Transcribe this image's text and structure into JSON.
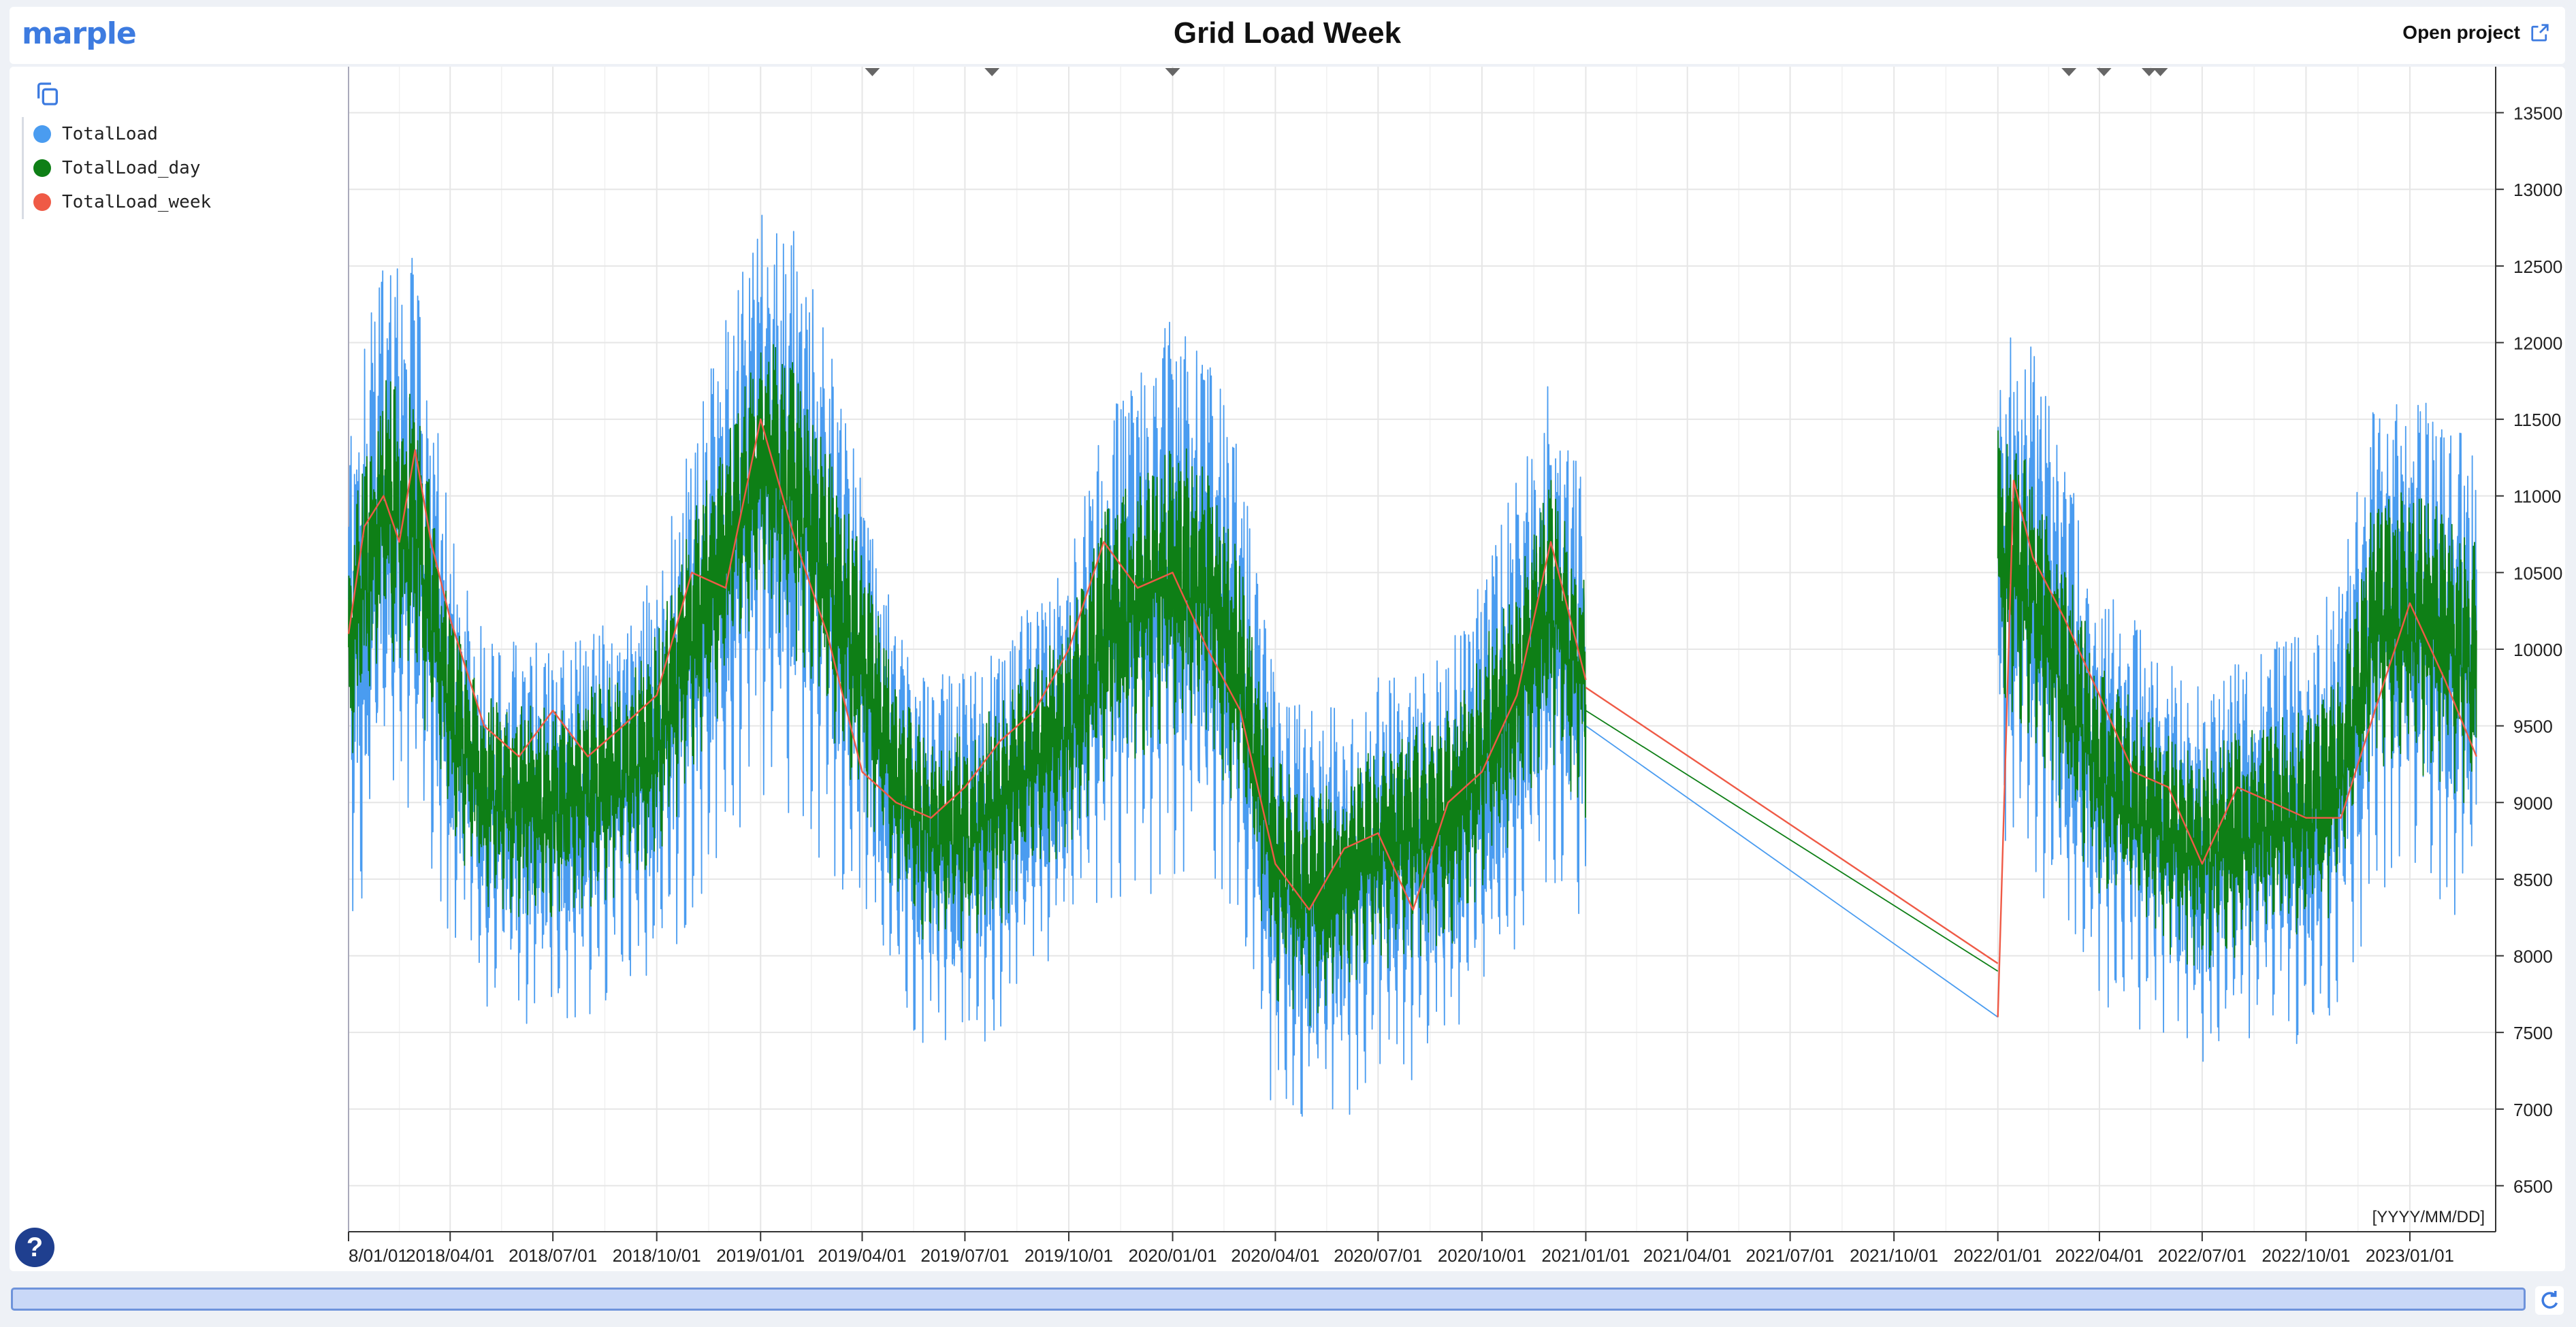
{
  "app": {
    "logo_text": "marple",
    "title": "Grid Load Week",
    "open_project_label": "Open project"
  },
  "legend": [
    {
      "label": "TotalLoad",
      "color": "#4a9cf0"
    },
    {
      "label": "TotalLoad_day",
      "color": "#0e7f16"
    },
    {
      "label": "TotalLoad_week",
      "color": "#ef5a46"
    }
  ],
  "help_label": "?",
  "chart_data": {
    "type": "line",
    "title": "Grid Load Week",
    "x_axis_format": "[YYYY/MM/DD]",
    "xlim": [
      "2018-01-01",
      "2023-03-18"
    ],
    "ylim": [
      6200,
      13800
    ],
    "y_ticks": [
      6500,
      7000,
      7500,
      8000,
      8500,
      9000,
      9500,
      10000,
      10500,
      11000,
      11500,
      12000,
      12500,
      13000,
      13500
    ],
    "x_tick_labels": [
      "8/01/01",
      "2018/04/01",
      "2018/07/01",
      "2018/10/01",
      "2019/01/01",
      "2019/04/01",
      "2019/07/01",
      "2019/10/01",
      "2020/01/01",
      "2020/04/01",
      "2020/07/01",
      "2020/10/01",
      "2021/01/01",
      "2021/04/01",
      "2021/07/01",
      "2021/10/01",
      "2022/01/01",
      "2022/04/01",
      "2022/07/01",
      "2022/10/01",
      "2023/01/01"
    ],
    "x_tick_dates": [
      "2018-01-01",
      "2018-04-01",
      "2018-07-01",
      "2018-10-01",
      "2019-01-01",
      "2019-04-01",
      "2019-07-01",
      "2019-10-01",
      "2020-01-01",
      "2020-04-01",
      "2020-07-01",
      "2020-10-01",
      "2021-01-01",
      "2021-04-01",
      "2021-07-01",
      "2021-10-01",
      "2022-01-01",
      "2022-04-01",
      "2022-07-01",
      "2022-10-01",
      "2023-01-01"
    ],
    "grid": true,
    "y_axis_side": "right",
    "event_markers": [
      "2019-04-10",
      "2019-07-25",
      "2020-01-01",
      "2022-03-05",
      "2022-04-05",
      "2022-05-15",
      "2022-05-25"
    ],
    "series": [
      {
        "name": "TotalLoad",
        "color": "#4a9cf0",
        "segments": [
          {
            "x": [
              "2018-01-01",
              "2018-02-01",
              "2018-03-01",
              "2018-04-01",
              "2018-05-01",
              "2018-06-01",
              "2018-07-01",
              "2018-08-01",
              "2018-09-01",
              "2018-10-01",
              "2018-11-01",
              "2018-12-01",
              "2019-01-01",
              "2019-02-01",
              "2019-03-01",
              "2019-04-01",
              "2019-05-01",
              "2019-06-01",
              "2019-07-01",
              "2019-08-01",
              "2019-09-01",
              "2019-10-01",
              "2019-11-01",
              "2019-12-01",
              "2020-01-01",
              "2020-02-01",
              "2020-03-01",
              "2020-04-01",
              "2020-05-01",
              "2020-06-01",
              "2020-07-01",
              "2020-08-01",
              "2020-09-01",
              "2020-10-01",
              "2020-11-01",
              "2020-12-01",
              "2021-01-01"
            ],
            "y": [
              9900,
              10900,
              10800,
              9600,
              9000,
              8900,
              8950,
              9000,
              9100,
              9300,
              10000,
              10600,
              11200,
              11000,
              10500,
              9800,
              9000,
              8700,
              8700,
              8900,
              9200,
              9400,
              10100,
              10300,
              10500,
              10400,
              9800,
              8500,
              8300,
              8400,
              8600,
              8700,
              8800,
              9200,
              9700,
              10300,
              9800
            ],
            "noise": [
              1800,
              2000,
              2000,
              1400,
              1300,
              1300,
              1300,
              1300,
              1300,
              1400,
              1600,
              1800,
              2000,
              2000,
              1800,
              1500,
              1300,
              1300,
              1300,
              1300,
              1300,
              1400,
              1600,
              1800,
              1900,
              1800,
              1700,
              1500,
              1500,
              1400,
              1400,
              1400,
              1400,
              1500,
              1600,
              1700,
              1500
            ]
          },
          {
            "x": [
              "2021-01-01",
              "2022-01-01"
            ],
            "y": [
              9500,
              7600
            ],
            "noise": [
              0,
              0
            ]
          },
          {
            "x": [
              "2022-01-01",
              "2022-02-01",
              "2022-03-01",
              "2022-04-01",
              "2022-05-01",
              "2022-06-01",
              "2022-07-01",
              "2022-08-01",
              "2022-09-01",
              "2022-10-01",
              "2022-11-01",
              "2022-12-01",
              "2023-01-01",
              "2023-02-01",
              "2023-03-01"
            ],
            "y": [
              10600,
              10400,
              9800,
              9200,
              9000,
              8800,
              8600,
              8800,
              8900,
              8900,
              9200,
              10200,
              10200,
              10100,
              9900
            ],
            "noise": [
              1900,
              1800,
              1700,
              1400,
              1400,
              1300,
              1300,
              1300,
              1300,
              1400,
              1500,
              1700,
              1700,
              1700,
              1600
            ]
          }
        ]
      },
      {
        "name": "TotalLoad_day",
        "color": "#0e7f16",
        "segments": [
          {
            "x": [
              "2018-01-01",
              "2018-02-01",
              "2018-03-01",
              "2018-04-01",
              "2018-05-01",
              "2018-06-01",
              "2018-07-01",
              "2018-08-01",
              "2018-09-01",
              "2018-10-01",
              "2018-11-01",
              "2018-12-01",
              "2019-01-01",
              "2019-02-01",
              "2019-03-01",
              "2019-04-01",
              "2019-05-01",
              "2019-06-01",
              "2019-07-01",
              "2019-08-01",
              "2019-09-01",
              "2019-10-01",
              "2019-11-01",
              "2019-12-01",
              "2020-01-01",
              "2020-02-01",
              "2020-03-01",
              "2020-04-01",
              "2020-05-01",
              "2020-06-01",
              "2020-07-01",
              "2020-08-01",
              "2020-09-01",
              "2020-10-01",
              "2020-11-01",
              "2020-12-01",
              "2021-01-01"
            ],
            "y": [
              10000,
              10900,
              10800,
              9600,
              9100,
              9000,
              9000,
              9100,
              9200,
              9400,
              10100,
              10600,
              11200,
              11000,
              10500,
              9900,
              9100,
              8800,
              8800,
              9000,
              9300,
              9500,
              10100,
              10300,
              10500,
              10400,
              9800,
              8600,
              8400,
              8500,
              8700,
              8800,
              8900,
              9300,
              9700,
              10300,
              9800
            ],
            "noise": [
              900,
              1000,
              1000,
              800,
              750,
              750,
              750,
              750,
              750,
              800,
              900,
              950,
              1000,
              1000,
              950,
              850,
              750,
              750,
              750,
              750,
              750,
              800,
              900,
              950,
              1000,
              950,
              900,
              850,
              850,
              800,
              800,
              800,
              800,
              850,
              900,
              950,
              850
            ]
          },
          {
            "x": [
              "2021-01-01",
              "2022-01-01"
            ],
            "y": [
              9600,
              7900
            ],
            "noise": [
              0,
              0
            ]
          },
          {
            "x": [
              "2022-01-01",
              "2022-02-01",
              "2022-03-01",
              "2022-04-01",
              "2022-05-01",
              "2022-06-01",
              "2022-07-01",
              "2022-08-01",
              "2022-09-01",
              "2022-10-01",
              "2022-11-01",
              "2022-12-01",
              "2023-01-01",
              "2023-02-01",
              "2023-03-01"
            ],
            "y": [
              10600,
              10400,
              9800,
              9200,
              9000,
              8800,
              8700,
              8800,
              8900,
              8900,
              9200,
              10200,
              10200,
              10100,
              9900
            ],
            "noise": [
              950,
              950,
              900,
              800,
              800,
              750,
              750,
              750,
              750,
              800,
              850,
              950,
              950,
              950,
              900
            ]
          }
        ]
      },
      {
        "name": "TotalLoad_week",
        "color": "#ef5a46",
        "segments": [
          {
            "x": [
              "2018-01-01",
              "2018-01-15",
              "2018-02-01",
              "2018-02-15",
              "2018-03-01",
              "2018-03-15",
              "2018-04-01",
              "2018-05-01",
              "2018-06-01",
              "2018-07-01",
              "2018-08-01",
              "2018-09-01",
              "2018-10-01",
              "2018-11-01",
              "2018-12-01",
              "2019-01-01",
              "2019-02-01",
              "2019-03-01",
              "2019-04-01",
              "2019-05-01",
              "2019-06-01",
              "2019-07-01",
              "2019-08-01",
              "2019-09-01",
              "2019-10-01",
              "2019-11-01",
              "2019-12-01",
              "2020-01-01",
              "2020-02-01",
              "2020-03-01",
              "2020-04-01",
              "2020-05-01",
              "2020-06-01",
              "2020-07-01",
              "2020-08-01",
              "2020-09-01",
              "2020-10-01",
              "2020-11-01",
              "2020-12-01",
              "2021-01-01"
            ],
            "y": [
              10100,
              10800,
              11000,
              10700,
              11300,
              10700,
              10200,
              9500,
              9300,
              9600,
              9300,
              9500,
              9700,
              10500,
              10400,
              11500,
              10700,
              10100,
              9200,
              9000,
              8900,
              9100,
              9400,
              9600,
              10000,
              10700,
              10400,
              10500,
              10000,
              9600,
              8600,
              8300,
              8700,
              8800,
              8300,
              9000,
              9200,
              9700,
              10700,
              9800
            ]
          },
          {
            "x": [
              "2021-01-01",
              "2022-01-01"
            ],
            "y": [
              9750,
              7950
            ]
          },
          {
            "x": [
              "2022-01-01",
              "2022-01-15",
              "2022-02-01",
              "2022-03-01",
              "2022-04-01",
              "2022-05-01",
              "2022-06-01",
              "2022-07-01",
              "2022-08-01",
              "2022-09-01",
              "2022-10-01",
              "2022-11-01",
              "2022-12-01",
              "2023-01-01",
              "2023-02-01",
              "2023-03-01"
            ],
            "y": [
              7600,
              11100,
              10600,
              10200,
              9700,
              9200,
              9100,
              8600,
              9100,
              9000,
              8900,
              8900,
              9600,
              10300,
              9800,
              9300
            ]
          }
        ]
      }
    ]
  }
}
